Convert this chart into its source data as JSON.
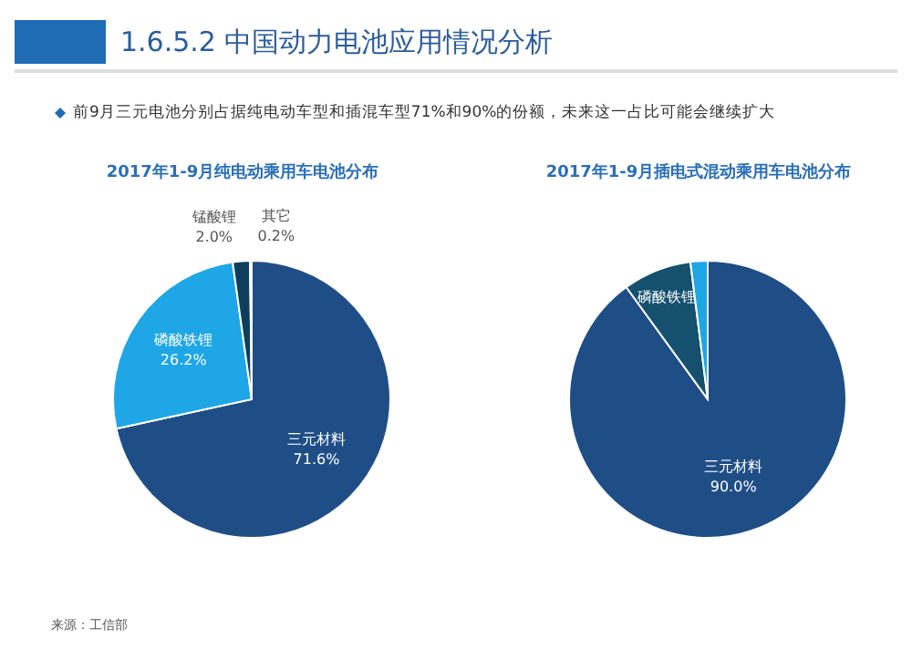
{
  "chart_data": [
    {
      "type": "pie",
      "title": "2017年1-9月纯电动乘用车电池分布",
      "annotations": [
        "1.6.5.2 中国动力电池应用情况分析",
        "前9月三元电池分别占据纯电动车型和插混车型71%和90%的份额，未来这一占比可能会继续扩大",
        "来源：工信部"
      ],
      "categories": [
        "三元材料",
        "磷酸铁锂",
        "锰酸锂",
        "其它"
      ],
      "values": [
        71.6,
        26.2,
        2.0,
        0.2
      ],
      "colors": [
        "#1f4e86",
        "#1ea6e6",
        "#0d3f5c",
        "#0f2a44"
      ],
      "value_labels": [
        "71.6%",
        "26.2%",
        "2.0%",
        "0.2%"
      ]
    },
    {
      "type": "pie",
      "title": "2017年1-9月插电式混动乘用车电池分布",
      "categories": [
        "三元材料",
        "磷酸铁锂",
        null
      ],
      "values": [
        90.0,
        8.0,
        2.0
      ],
      "colors": [
        "#1f4e86",
        "#15506e",
        "#1ea6e6"
      ],
      "value_labels": [
        "90.0%",
        null,
        null
      ]
    }
  ]
}
